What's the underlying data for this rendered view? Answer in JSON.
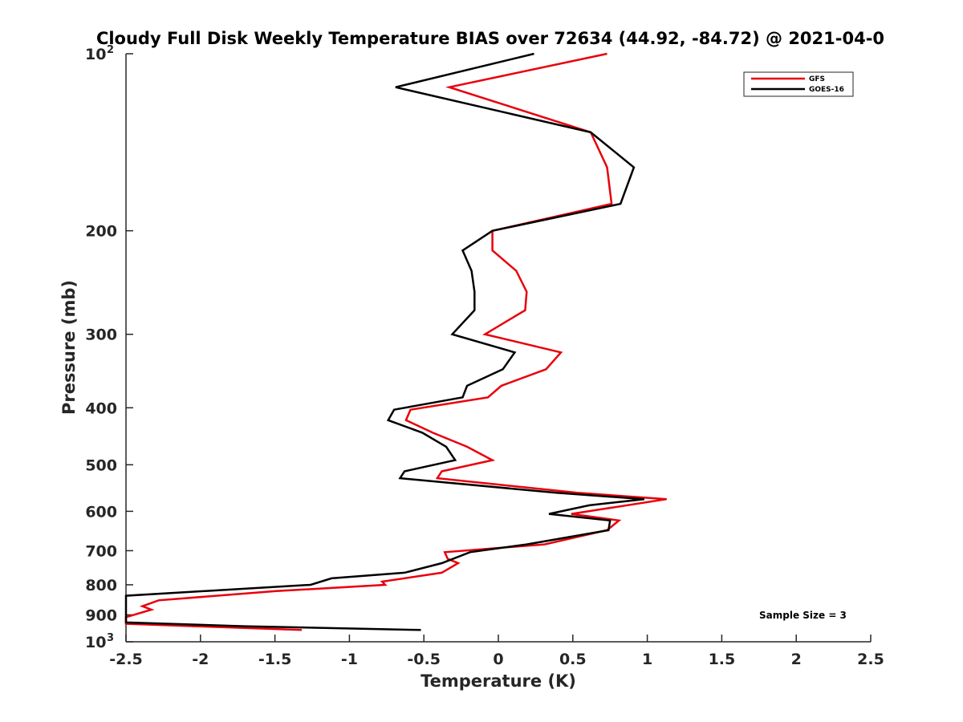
{
  "chart_data": {
    "type": "line",
    "title": "Cloudy Full Disk Weekly Temperature BIAS over 72634 (44.92, -84.72) @ 2021-04-0",
    "xlabel": "Temperature (K)",
    "ylabel": "Pressure (mb)",
    "xlim": [
      -2.5,
      2.5
    ],
    "ylim": [
      100,
      1000
    ],
    "y_scale": "log",
    "y_reversed": true,
    "grid": false,
    "legend_position": "top-right",
    "x_ticks": [
      {
        "value": -2.5,
        "label": "-2.5"
      },
      {
        "value": -2,
        "label": "-2"
      },
      {
        "value": -1.5,
        "label": "-1.5"
      },
      {
        "value": -1,
        "label": "-1"
      },
      {
        "value": -0.5,
        "label": "-0.5"
      },
      {
        "value": 0,
        "label": "0"
      },
      {
        "value": 0.5,
        "label": "0.5"
      },
      {
        "value": 1,
        "label": "1"
      },
      {
        "value": 1.5,
        "label": "1.5"
      },
      {
        "value": 2,
        "label": "2"
      },
      {
        "value": 2.5,
        "label": "2.5"
      }
    ],
    "y_ticks": [
      {
        "value": 100,
        "base": "10",
        "exp": "2"
      },
      {
        "value": 200,
        "label": "200"
      },
      {
        "value": 300,
        "label": "300"
      },
      {
        "value": 400,
        "label": "400"
      },
      {
        "value": 500,
        "label": "500"
      },
      {
        "value": 600,
        "label": "600"
      },
      {
        "value": 700,
        "label": "700"
      },
      {
        "value": 800,
        "label": "800"
      },
      {
        "value": 900,
        "label": "900"
      },
      {
        "value": 1000,
        "base": "10",
        "exp": "3"
      }
    ],
    "series": [
      {
        "name": "GFS",
        "color": "#e8000b",
        "points": [
          [
            0.73,
            100
          ],
          [
            -0.33,
            114
          ],
          [
            0.62,
            136
          ],
          [
            0.73,
            156
          ],
          [
            0.76,
            180
          ],
          [
            -0.04,
            200
          ],
          [
            -0.04,
            216
          ],
          [
            0.12,
            234
          ],
          [
            0.19,
            254
          ],
          [
            0.18,
            273
          ],
          [
            -0.09,
            300
          ],
          [
            0.42,
            322
          ],
          [
            0.32,
            344
          ],
          [
            0.02,
            367
          ],
          [
            -0.07,
            384
          ],
          [
            -0.59,
            403
          ],
          [
            -0.62,
            420
          ],
          [
            -0.44,
            441
          ],
          [
            -0.21,
            466
          ],
          [
            -0.04,
            491
          ],
          [
            -0.38,
            513
          ],
          [
            -0.41,
            527
          ],
          [
            0.53,
            558
          ],
          [
            1.13,
            572
          ],
          [
            0.49,
            606
          ],
          [
            0.81,
            622
          ],
          [
            0.73,
            646
          ],
          [
            0.31,
            683
          ],
          [
            -0.36,
            704
          ],
          [
            -0.34,
            723
          ],
          [
            -0.27,
            735
          ],
          [
            -0.38,
            763
          ],
          [
            -0.78,
            790
          ],
          [
            -0.76,
            800
          ],
          [
            -1.49,
            820
          ],
          [
            -2.28,
            850
          ],
          [
            -2.39,
            870
          ],
          [
            -2.33,
            882
          ],
          [
            -2.5,
            908
          ],
          [
            -2.5,
            932
          ],
          [
            -2.04,
            941
          ],
          [
            -1.32,
            955
          ]
        ]
      },
      {
        "name": "GOES-16",
        "color": "#000000",
        "points": [
          [
            0.24,
            100
          ],
          [
            -0.69,
            114
          ],
          [
            0.62,
            136
          ],
          [
            0.91,
            156
          ],
          [
            0.82,
            180
          ],
          [
            -0.04,
            200
          ],
          [
            -0.24,
            216
          ],
          [
            -0.18,
            234
          ],
          [
            -0.16,
            254
          ],
          [
            -0.16,
            273
          ],
          [
            -0.31,
            300
          ],
          [
            0.11,
            322
          ],
          [
            0.03,
            344
          ],
          [
            -0.21,
            367
          ],
          [
            -0.24,
            384
          ],
          [
            -0.7,
            403
          ],
          [
            -0.74,
            420
          ],
          [
            -0.51,
            441
          ],
          [
            -0.35,
            466
          ],
          [
            -0.29,
            491
          ],
          [
            -0.63,
            513
          ],
          [
            -0.66,
            527
          ],
          [
            0.39,
            558
          ],
          [
            0.98,
            572
          ],
          [
            0.61,
            586
          ],
          [
            0.34,
            606
          ],
          [
            0.75,
            622
          ],
          [
            0.74,
            646
          ],
          [
            0.19,
            683
          ],
          [
            -0.19,
            704
          ],
          [
            -0.38,
            735
          ],
          [
            -0.63,
            763
          ],
          [
            -1.12,
            780
          ],
          [
            -1.26,
            800
          ],
          [
            -2.5,
            835
          ],
          [
            -2.5,
            927
          ],
          [
            -1.71,
            941
          ],
          [
            -0.52,
            955
          ]
        ]
      }
    ],
    "annotations": [
      {
        "text": "Sample Size = 3",
        "position": "bottom-right"
      }
    ]
  }
}
